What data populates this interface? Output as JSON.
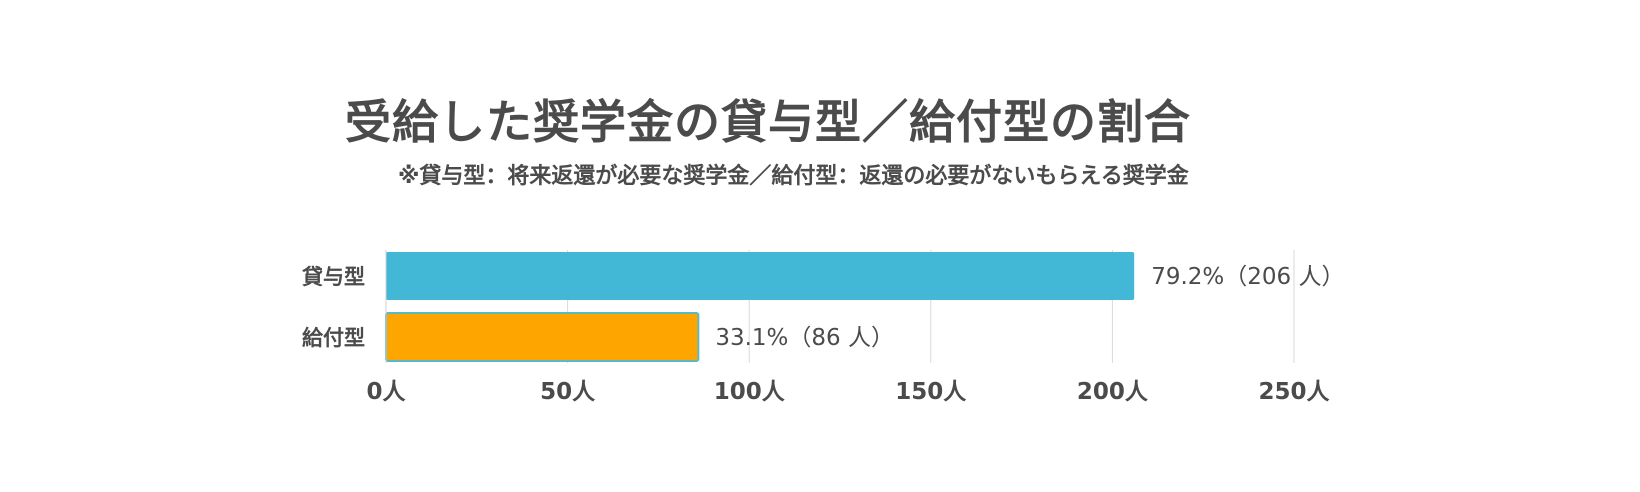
{
  "title": "受給した奨学金の貸与型／給付型の割合",
  "subtitle": "※貸与型：将来返還が必要な奨学金／給付型：返還の必要がないもらえる奨学金",
  "chart_data": {
    "type": "bar",
    "orientation": "horizontal",
    "categories": [
      "貸与型",
      "給付型"
    ],
    "values": [
      206,
      86
    ],
    "percentages": [
      79.2,
      33.1
    ],
    "data_labels": [
      "79.2%（206 人）",
      "33.1%（86 人）"
    ],
    "xlim": [
      0,
      250
    ],
    "x_ticks": [
      0,
      50,
      100,
      150,
      200,
      250
    ],
    "x_tick_labels": [
      "0人",
      "50人",
      "100人",
      "150人",
      "200人",
      "250人"
    ],
    "grid": true,
    "colors": [
      "#42b8d6",
      "#ffa500"
    ],
    "bar_edge_color": "#5bb8c8"
  }
}
